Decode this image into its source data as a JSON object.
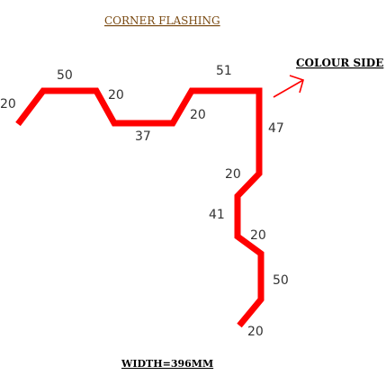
{
  "title": "CORNER FLASHING",
  "title_color": "#7a4a12",
  "colour_side_label": "COLOUR SIDE",
  "width_label": "WIDTH=396MM",
  "profile_color": "#ff0000",
  "dimensions": [
    "20",
    "50",
    "20",
    "37",
    "20",
    "51",
    "47",
    "20",
    "41",
    "20",
    "50",
    "20"
  ]
}
